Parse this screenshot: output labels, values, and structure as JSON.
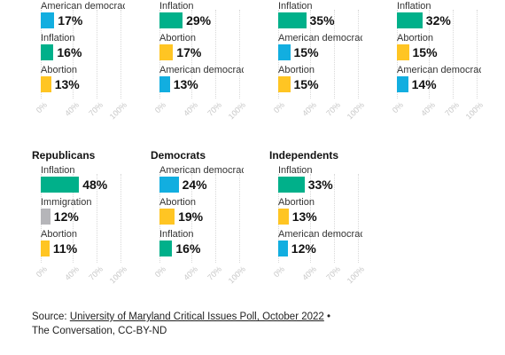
{
  "colors": {
    "Inflation": "#00b08a",
    "American democracy": "#12aee0",
    "Abortion": "#ffc523",
    "Immigration": "#b5b5b9"
  },
  "chart_data": [
    {
      "type": "bar",
      "title": "",
      "xlim": [
        0,
        100
      ],
      "ticks": [
        "0%",
        "40%",
        "70%",
        "100%"
      ],
      "categories": [
        "American democracy",
        "Inflation",
        "Abortion"
      ],
      "values": [
        17,
        16,
        13
      ],
      "labels": [
        "17%",
        "16%",
        "13%"
      ]
    },
    {
      "type": "bar",
      "title": "",
      "xlim": [
        0,
        100
      ],
      "ticks": [
        "0%",
        "40%",
        "70%",
        "100%"
      ],
      "categories": [
        "Inflation",
        "Abortion",
        "American democracy"
      ],
      "values": [
        29,
        17,
        13
      ],
      "labels": [
        "29%",
        "17%",
        "13%"
      ]
    },
    {
      "type": "bar",
      "title": "",
      "xlim": [
        0,
        100
      ],
      "ticks": [
        "0%",
        "40%",
        "70%",
        "100%"
      ],
      "categories": [
        "Inflation",
        "American democracy",
        "Abortion"
      ],
      "values": [
        35,
        15,
        15
      ],
      "labels": [
        "35%",
        "15%",
        "15%"
      ]
    },
    {
      "type": "bar",
      "title": "",
      "xlim": [
        0,
        100
      ],
      "ticks": [
        "0%",
        "40%",
        "70%",
        "100%"
      ],
      "categories": [
        "Inflation",
        "Abortion",
        "American democracy"
      ],
      "values": [
        32,
        15,
        14
      ],
      "labels": [
        "32%",
        "15%",
        "14%"
      ]
    },
    {
      "type": "bar",
      "title": "Republicans",
      "xlim": [
        0,
        100
      ],
      "ticks": [
        "0%",
        "40%",
        "70%",
        "100%"
      ],
      "categories": [
        "Inflation",
        "Immigration",
        "Abortion"
      ],
      "values": [
        48,
        12,
        11
      ],
      "labels": [
        "48%",
        "12%",
        "11%"
      ]
    },
    {
      "type": "bar",
      "title": "Democrats",
      "xlim": [
        0,
        100
      ],
      "ticks": [
        "0%",
        "40%",
        "70%",
        "100%"
      ],
      "categories": [
        "American democracy",
        "Abortion",
        "Inflation"
      ],
      "values": [
        24,
        19,
        16
      ],
      "labels": [
        "24%",
        "19%",
        "16%"
      ]
    },
    {
      "type": "bar",
      "title": "Independents",
      "xlim": [
        0,
        100
      ],
      "ticks": [
        "0%",
        "40%",
        "70%",
        "100%"
      ],
      "categories": [
        "Inflation",
        "Abortion",
        "American democracy"
      ],
      "values": [
        33,
        13,
        12
      ],
      "labels": [
        "33%",
        "13%",
        "12%"
      ]
    }
  ],
  "source": {
    "prefix": "Source: ",
    "link_text": "University of Maryland Critical Issues Poll, October 2022",
    "suffix": " •",
    "line2": "The Conversation, CC-BY-ND"
  }
}
